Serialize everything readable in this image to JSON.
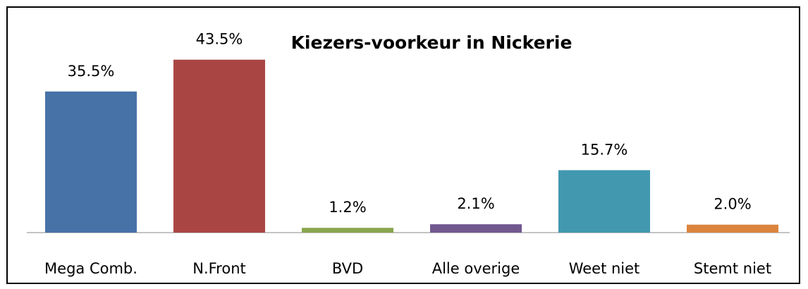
{
  "chart_data": {
    "type": "bar",
    "title": "Kiezers-voorkeur in Nickerie",
    "categories": [
      "Mega Comb.",
      "N.Front",
      "BVD",
      "Alle overige",
      "Weet niet",
      "Stemt niet"
    ],
    "values": [
      35.5,
      43.5,
      1.2,
      2.1,
      15.7,
      2.0
    ],
    "value_labels": [
      "35.5%",
      "43.5%",
      "1.2%",
      "2.1%",
      "15.7%",
      "2.0%"
    ],
    "colors": [
      "#4672a8",
      "#a94643",
      "#89a54e",
      "#71588f",
      "#4198af",
      "#db843d"
    ],
    "ylim": [
      0,
      50
    ]
  }
}
